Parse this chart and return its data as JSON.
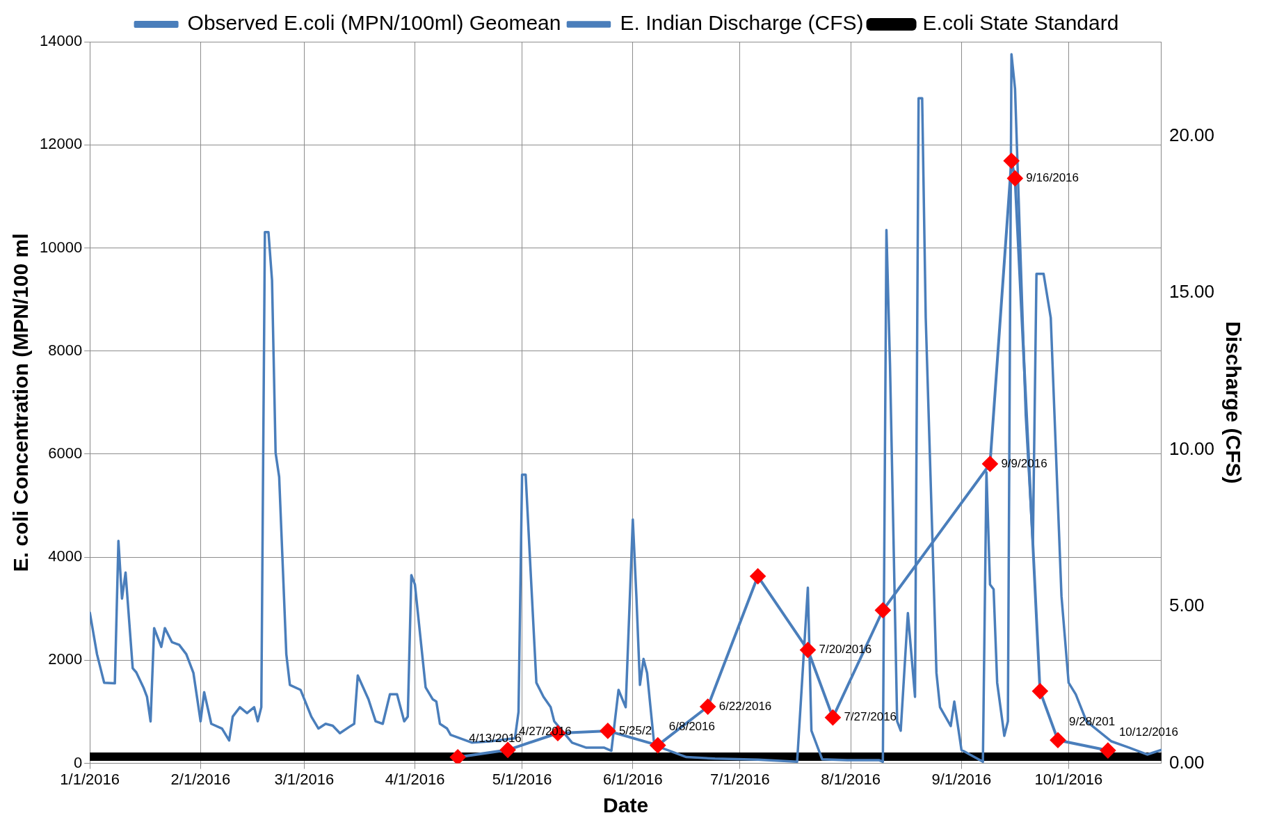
{
  "chart_data": {
    "type": "line",
    "xlabel": "Date",
    "ylabel": "E. coli Concentration (MPN/100 ml",
    "y2label": "Discharge (CFS)",
    "xlim": [
      "2016-01-01",
      "2016-10-27"
    ],
    "xticks": [
      {
        "value": "2016-01-01",
        "label": "1/1/2016"
      },
      {
        "value": "2016-02-01",
        "label": "2/1/2016"
      },
      {
        "value": "2016-03-01",
        "label": "3/1/2016"
      },
      {
        "value": "2016-04-01",
        "label": "4/1/2016"
      },
      {
        "value": "2016-05-01",
        "label": "5/1/2016"
      },
      {
        "value": "2016-06-01",
        "label": "6/1/2016"
      },
      {
        "value": "2016-07-01",
        "label": "7/1/2016"
      },
      {
        "value": "2016-08-01",
        "label": "8/1/2016"
      },
      {
        "value": "2016-09-01",
        "label": "9/1/2016"
      },
      {
        "value": "2016-10-01",
        "label": "10/1/2016"
      }
    ],
    "ylim": [
      0,
      14000
    ],
    "yticks": [
      0,
      2000,
      4000,
      6000,
      8000,
      10000,
      12000,
      14000
    ],
    "y2lim": [
      0,
      23
    ],
    "y2ticks": [
      {
        "value": 0,
        "label": "0.00"
      },
      {
        "value": 5,
        "label": "5.00"
      },
      {
        "value": 10,
        "label": "10.00"
      },
      {
        "value": 15,
        "label": "15.00"
      },
      {
        "value": 20,
        "label": "20.00"
      }
    ],
    "grid": true,
    "legend": "top",
    "series": [
      {
        "name": "Observed E.coli (MPN/100ml) Geomean",
        "color": "#4a7ebb",
        "colors": [
          "#ff0000",
          "#ff0000",
          "#ff0000",
          "#ff0000",
          "#ff0000",
          "#ff0000",
          "#ff0000",
          "#ff0000",
          "#ff0000",
          "#ff0000",
          "#ff0000",
          "#ff0000",
          "#ff0000",
          "#ff0000",
          "#ff0000",
          "#ff0000"
        ],
        "marker": "diamond",
        "line_style": "solid",
        "x": [
          "2016-04-13",
          "2016-04-27",
          "2016-05-11",
          "2016-05-25",
          "2016-06-08",
          "2016-06-22",
          "2016-07-06",
          "2016-07-20",
          "2016-07-27",
          "2016-08-10",
          "2016-09-09",
          "2016-09-15",
          "2016-09-16",
          "2016-09-23",
          "2016-09-28",
          "2016-10-12"
        ],
        "values": [
          120,
          260,
          585,
          630,
          350,
          1100,
          3630,
          2200,
          890,
          2970,
          5810,
          11690,
          11350,
          1400,
          450,
          250
        ],
        "value_labels": [
          "4/13/2016",
          "4/27/2016",
          null,
          "5/25/2",
          "6/8/2016",
          "6/22/2016",
          null,
          "7/20/2016",
          "7/27/2016",
          null,
          "9/9/2016",
          null,
          "9/16/2016",
          null,
          "9/28/201",
          "10/12/2016"
        ]
      },
      {
        "name": "E.coli State Standard",
        "color": "#000000",
        "marker": "none",
        "line_style": "solid",
        "x": [
          "2016-01-01",
          "2016-10-27"
        ],
        "values": [
          130,
          130
        ]
      },
      {
        "name": "E. Indian Discharge (CFS)",
        "color": "#4a7ebb",
        "marker": "none",
        "line_style": "solid",
        "axis": "y2",
        "x": [
          "2016-01-01",
          "2016-01-03",
          "2016-01-05",
          "2016-01-08",
          "2016-01-09",
          "2016-01-10",
          "2016-01-11",
          "2016-01-13",
          "2016-01-14",
          "2016-01-16",
          "2016-01-17",
          "2016-01-18",
          "2016-01-19",
          "2016-01-21",
          "2016-01-22",
          "2016-01-24",
          "2016-01-26",
          "2016-01-28",
          "2016-01-30",
          "2016-02-01",
          "2016-02-02",
          "2016-02-04",
          "2016-02-07",
          "2016-02-09",
          "2016-02-10",
          "2016-02-12",
          "2016-02-14",
          "2016-02-16",
          "2016-02-17",
          "2016-02-18",
          "2016-02-19",
          "2016-02-20",
          "2016-02-21",
          "2016-02-22",
          "2016-02-23",
          "2016-02-25",
          "2016-02-26",
          "2016-02-29",
          "2016-03-03",
          "2016-03-05",
          "2016-03-07",
          "2016-03-09",
          "2016-03-11",
          "2016-03-14",
          "2016-03-15",
          "2016-03-16",
          "2016-03-19",
          "2016-03-21",
          "2016-03-23",
          "2016-03-25",
          "2016-03-27",
          "2016-03-29",
          "2016-03-30",
          "2016-03-31",
          "2016-04-01",
          "2016-04-04",
          "2016-04-06",
          "2016-04-07",
          "2016-04-08",
          "2016-04-10",
          "2016-04-11",
          "2016-04-17",
          "2016-04-22",
          "2016-04-29",
          "2016-04-30",
          "2016-05-01",
          "2016-05-02",
          "2016-05-05",
          "2016-05-07",
          "2016-05-09",
          "2016-05-10",
          "2016-05-15",
          "2016-05-19",
          "2016-05-24",
          "2016-05-26",
          "2016-05-28",
          "2016-05-30",
          "2016-06-01",
          "2016-06-02",
          "2016-06-03",
          "2016-06-04",
          "2016-06-05",
          "2016-06-07",
          "2016-06-16",
          "2016-06-24",
          "2016-07-06",
          "2016-07-17",
          "2016-07-20",
          "2016-07-21",
          "2016-07-24",
          "2016-07-31",
          "2016-08-09",
          "2016-08-10",
          "2016-08-11",
          "2016-08-12",
          "2016-08-14",
          "2016-08-15",
          "2016-08-17",
          "2016-08-19",
          "2016-08-20",
          "2016-08-21",
          "2016-08-22",
          "2016-08-25",
          "2016-08-26",
          "2016-08-29",
          "2016-08-30",
          "2016-09-01",
          "2016-09-07",
          "2016-09-08",
          "2016-09-09",
          "2016-09-10",
          "2016-09-11",
          "2016-09-13",
          "2016-09-14",
          "2016-09-15",
          "2016-09-16",
          "2016-09-19",
          "2016-09-21",
          "2016-09-22",
          "2016-09-24",
          "2016-09-26",
          "2016-09-29",
          "2016-10-01",
          "2016-10-03",
          "2016-10-06",
          "2016-10-13",
          "2016-10-18",
          "2016-10-23",
          "2016-10-27"
        ],
        "values": [
          4.8,
          3.48,
          2.57,
          2.55,
          7.09,
          5.25,
          6.08,
          3.03,
          2.9,
          2.42,
          2.12,
          1.34,
          4.31,
          3.71,
          4.31,
          3.86,
          3.78,
          3.48,
          2.88,
          1.34,
          2.27,
          1.26,
          1.11,
          0.73,
          1.49,
          1.79,
          1.6,
          1.79,
          1.34,
          1.79,
          16.93,
          16.93,
          15.4,
          9.9,
          9.13,
          3.48,
          2.5,
          2.34,
          1.49,
          1.11,
          1.26,
          1.2,
          0.96,
          1.19,
          1.26,
          2.8,
          2.04,
          1.34,
          1.26,
          2.2,
          2.2,
          1.34,
          1.49,
          6.0,
          5.7,
          2.42,
          2.04,
          1.97,
          1.26,
          1.11,
          0.91,
          0.66,
          0.7,
          0.8,
          1.64,
          9.2,
          9.2,
          2.57,
          2.12,
          1.79,
          1.34,
          0.66,
          0.5,
          0.5,
          0.4,
          2.34,
          1.79,
          7.77,
          5.33,
          2.5,
          3.33,
          2.88,
          0.58,
          0.2,
          0.15,
          0.12,
          0.05,
          5.6,
          1.04,
          0.13,
          0.1,
          0.1,
          0.05,
          17.0,
          12.7,
          1.34,
          1.04,
          4.79,
          2.12,
          21.2,
          21.2,
          14.2,
          2.88,
          1.79,
          1.19,
          1.97,
          0.43,
          0.05,
          9.28,
          5.7,
          5.55,
          2.57,
          0.88,
          1.34,
          22.6,
          21.5,
          11.1,
          7.0,
          15.6,
          15.6,
          14.2,
          5.33,
          2.57,
          2.2,
          1.34,
          0.7,
          0.5,
          0.28,
          0.43
        ]
      }
    ]
  }
}
